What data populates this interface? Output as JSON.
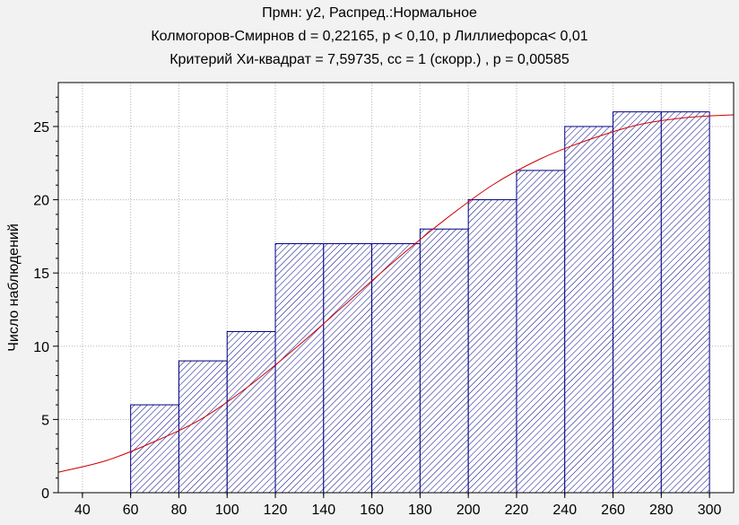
{
  "chart_data": {
    "type": "bar",
    "title_lines": [
      "Прмн: y2, Распред.:Нормальное",
      "Колмогоров-Смирнов d = 0,22165, p < 0,10, p Лиллиефорса< 0,01",
      "Критерий Хи-квадрат = 7,59735, cc = 1 (скорр.) , p = 0,00585"
    ],
    "ylabel": "Число наблюдений",
    "xlabel": "",
    "x_ticks": [
      40,
      60,
      80,
      100,
      120,
      140,
      160,
      180,
      200,
      220,
      240,
      260,
      280,
      300
    ],
    "y_ticks": [
      0,
      5,
      10,
      15,
      20,
      25
    ],
    "xlim": [
      30,
      310
    ],
    "ylim": [
      0,
      28
    ],
    "grid": true,
    "bins": [
      {
        "from": 60,
        "to": 80,
        "count": 6
      },
      {
        "from": 80,
        "to": 100,
        "count": 9
      },
      {
        "from": 100,
        "to": 120,
        "count": 11
      },
      {
        "from": 120,
        "to": 140,
        "count": 17
      },
      {
        "from": 140,
        "to": 160,
        "count": 17
      },
      {
        "from": 160,
        "to": 180,
        "count": 17
      },
      {
        "from": 180,
        "to": 200,
        "count": 18
      },
      {
        "from": 200,
        "to": 220,
        "count": 20
      },
      {
        "from": 220,
        "to": 240,
        "count": 22
      },
      {
        "from": 240,
        "to": 260,
        "count": 25
      },
      {
        "from": 260,
        "to": 280,
        "count": 26
      },
      {
        "from": 280,
        "to": 300,
        "count": 26
      }
    ],
    "fit_curve": {
      "points": [
        [
          30,
          1.4
        ],
        [
          50,
          2.2
        ],
        [
          70,
          3.5
        ],
        [
          90,
          5.1
        ],
        [
          110,
          7.4
        ],
        [
          130,
          10.1
        ],
        [
          150,
          13.0
        ],
        [
          170,
          15.9
        ],
        [
          190,
          18.6
        ],
        [
          210,
          21.0
        ],
        [
          230,
          22.8
        ],
        [
          250,
          24.1
        ],
        [
          270,
          25.1
        ],
        [
          290,
          25.6
        ],
        [
          310,
          25.8
        ]
      ]
    },
    "colors": {
      "bar_stroke": "#000080",
      "bar_hatch": "#000080",
      "bar_fill": "#ffffff",
      "curve": "#cc0000",
      "grid": "#b4b4b4",
      "background": "#f2f2f2",
      "plot_background": "#ffffff"
    }
  }
}
